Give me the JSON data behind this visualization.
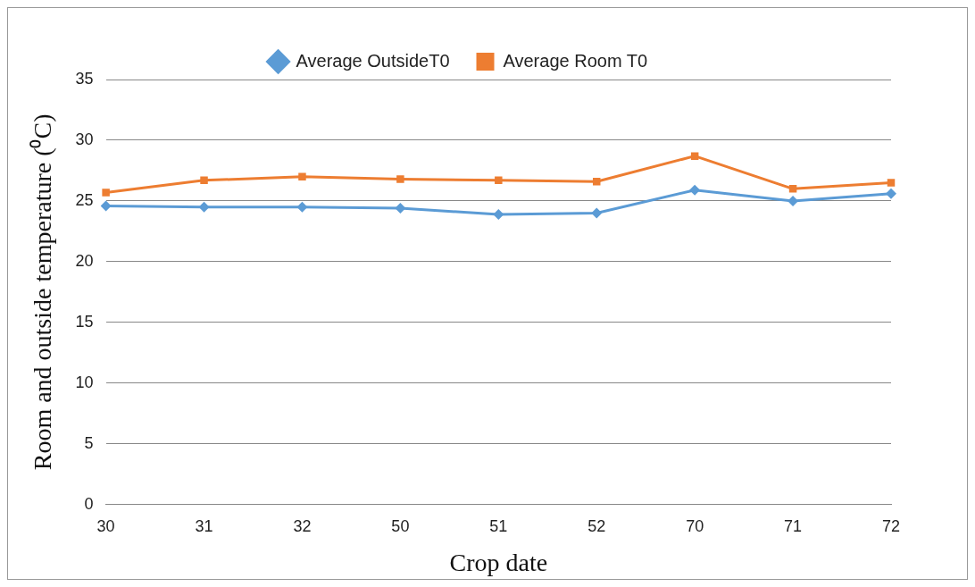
{
  "chart_data": {
    "type": "line",
    "xlabel": "Crop date",
    "ylabel": "Room and outside temperature (⁰C)",
    "categories": [
      "30",
      "31",
      "32",
      "50",
      "51",
      "52",
      "70",
      "71",
      "72"
    ],
    "series": [
      {
        "name": "Average OutsideT0",
        "color": "#5b9bd5",
        "marker": "diamond",
        "values": [
          24.6,
          24.5,
          24.5,
          24.4,
          23.9,
          24.0,
          25.9,
          25.0,
          25.6
        ]
      },
      {
        "name": "Average Room T0",
        "color": "#ed7d31",
        "marker": "square",
        "values": [
          25.7,
          26.7,
          27.0,
          26.8,
          26.7,
          26.6,
          28.7,
          26.0,
          26.5
        ]
      }
    ],
    "ylim": [
      0,
      35
    ],
    "yticks": [
      0,
      5,
      10,
      15,
      20,
      25,
      30,
      35
    ],
    "grid": "y",
    "legend": "top",
    "line_style": "solid"
  }
}
